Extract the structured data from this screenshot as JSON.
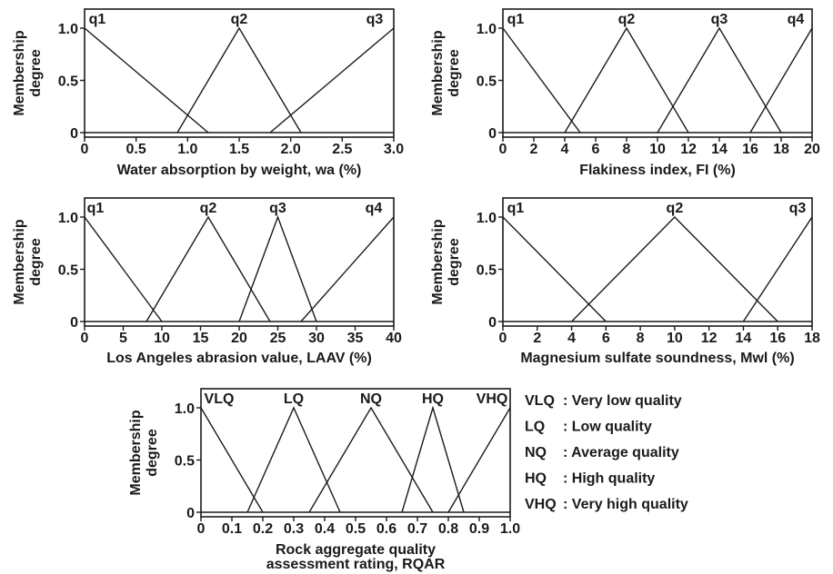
{
  "y_axis_label": [
    "Membership",
    "degree"
  ],
  "y_ticks": [
    "0",
    "0.5",
    "1.0"
  ],
  "chart_data": [
    {
      "type": "line",
      "xlabel": "Water absorption by weight, wa (%)",
      "xlim": [
        0,
        3.0
      ],
      "ylim": [
        0,
        1.0
      ],
      "x_ticks": [
        {
          "value": 0,
          "label": "0"
        },
        {
          "value": 0.5,
          "label": "0.5"
        },
        {
          "value": 1.0,
          "label": "1.0"
        },
        {
          "value": 1.5,
          "label": "1.5"
        },
        {
          "value": 2.0,
          "label": "2.0"
        },
        {
          "value": 2.5,
          "label": "2.5"
        },
        {
          "value": 3.0,
          "label": "3.0"
        }
      ],
      "series": [
        {
          "name": "q1",
          "x": [
            0,
            1.2
          ],
          "y": [
            1,
            0
          ]
        },
        {
          "name": "q2",
          "x": [
            0.9,
            1.5,
            2.1
          ],
          "y": [
            0,
            1,
            0
          ]
        },
        {
          "name": "q3",
          "x": [
            1.8,
            3.0
          ],
          "y": [
            0,
            1
          ]
        }
      ]
    },
    {
      "type": "line",
      "xlabel": "Flakiness index, FI (%)",
      "xlim": [
        0,
        20
      ],
      "ylim": [
        0,
        1.0
      ],
      "x_ticks": [
        {
          "value": 0,
          "label": "0"
        },
        {
          "value": 2,
          "label": "2"
        },
        {
          "value": 4,
          "label": "4"
        },
        {
          "value": 6,
          "label": "6"
        },
        {
          "value": 8,
          "label": "8"
        },
        {
          "value": 10,
          "label": "10"
        },
        {
          "value": 12,
          "label": "12"
        },
        {
          "value": 14,
          "label": "14"
        },
        {
          "value": 16,
          "label": "16"
        },
        {
          "value": 18,
          "label": "18"
        },
        {
          "value": 20,
          "label": "20"
        }
      ],
      "series": [
        {
          "name": "q1",
          "x": [
            0,
            5
          ],
          "y": [
            1,
            0
          ]
        },
        {
          "name": "q2",
          "x": [
            4,
            8,
            12
          ],
          "y": [
            0,
            1,
            0
          ]
        },
        {
          "name": "q3",
          "x": [
            10,
            14,
            18
          ],
          "y": [
            0,
            1,
            0
          ]
        },
        {
          "name": "q4",
          "x": [
            16,
            20
          ],
          "y": [
            0,
            1
          ]
        }
      ]
    },
    {
      "type": "line",
      "xlabel": "Los Angeles abrasion value, LAAV (%)",
      "xlim": [
        0,
        40
      ],
      "ylim": [
        0,
        1.0
      ],
      "x_ticks": [
        {
          "value": 0,
          "label": "0"
        },
        {
          "value": 5,
          "label": "5"
        },
        {
          "value": 10,
          "label": "10"
        },
        {
          "value": 15,
          "label": "15"
        },
        {
          "value": 20,
          "label": "20"
        },
        {
          "value": 25,
          "label": "25"
        },
        {
          "value": 30,
          "label": "30"
        },
        {
          "value": 35,
          "label": "35"
        },
        {
          "value": 40,
          "label": "40"
        }
      ],
      "series": [
        {
          "name": "q1",
          "x": [
            0,
            10
          ],
          "y": [
            1,
            0
          ]
        },
        {
          "name": "q2",
          "x": [
            8,
            16,
            24
          ],
          "y": [
            0,
            1,
            0
          ]
        },
        {
          "name": "q3",
          "x": [
            20,
            25,
            30
          ],
          "y": [
            0,
            1,
            0
          ]
        },
        {
          "name": "q4",
          "x": [
            28,
            40
          ],
          "y": [
            0,
            1
          ]
        }
      ]
    },
    {
      "type": "line",
      "xlabel": "Magnesium sulfate soundness, Mwl (%)",
      "xlim": [
        0,
        18
      ],
      "ylim": [
        0,
        1.0
      ],
      "x_ticks": [
        {
          "value": 0,
          "label": "0"
        },
        {
          "value": 2,
          "label": "2"
        },
        {
          "value": 4,
          "label": "4"
        },
        {
          "value": 6,
          "label": "6"
        },
        {
          "value": 8,
          "label": "8"
        },
        {
          "value": 10,
          "label": "10"
        },
        {
          "value": 12,
          "label": "12"
        },
        {
          "value": 14,
          "label": "14"
        },
        {
          "value": 16,
          "label": "16"
        },
        {
          "value": 18,
          "label": "18"
        }
      ],
      "series": [
        {
          "name": "q1",
          "x": [
            0,
            6
          ],
          "y": [
            1,
            0
          ]
        },
        {
          "name": "q2",
          "x": [
            4,
            10,
            16
          ],
          "y": [
            0,
            1,
            0
          ]
        },
        {
          "name": "q3",
          "x": [
            14,
            18
          ],
          "y": [
            0,
            1
          ]
        }
      ]
    },
    {
      "type": "line",
      "xlabel": [
        "Rock aggregate quality",
        "assessment rating, RQAR"
      ],
      "xlim": [
        0,
        1.0
      ],
      "ylim": [
        0,
        1.0
      ],
      "x_ticks": [
        {
          "value": 0,
          "label": "0"
        },
        {
          "value": 0.1,
          "label": "0.1"
        },
        {
          "value": 0.2,
          "label": "0.2"
        },
        {
          "value": 0.3,
          "label": "0.3"
        },
        {
          "value": 0.4,
          "label": "0.4"
        },
        {
          "value": 0.5,
          "label": "0.5"
        },
        {
          "value": 0.6,
          "label": "0.6"
        },
        {
          "value": 0.7,
          "label": "0.7"
        },
        {
          "value": 0.8,
          "label": "0.8"
        },
        {
          "value": 0.9,
          "label": "0.9"
        },
        {
          "value": 1.0,
          "label": "1.0"
        }
      ],
      "series": [
        {
          "name": "VLQ",
          "x": [
            0,
            0.2
          ],
          "y": [
            1,
            0
          ]
        },
        {
          "name": "LQ",
          "x": [
            0.15,
            0.3,
            0.45
          ],
          "y": [
            0,
            1,
            0
          ]
        },
        {
          "name": "NQ",
          "x": [
            0.35,
            0.55,
            0.75
          ],
          "y": [
            0,
            1,
            0
          ]
        },
        {
          "name": "HQ",
          "x": [
            0.65,
            0.75,
            0.85
          ],
          "y": [
            0,
            1,
            0
          ]
        },
        {
          "name": "VHQ",
          "x": [
            0.8,
            1.0
          ],
          "y": [
            0,
            1
          ]
        }
      ],
      "legend": [
        {
          "code": "VLQ",
          "meaning": ": Very low quality"
        },
        {
          "code": "LQ",
          "meaning": ": Low quality"
        },
        {
          "code": "NQ",
          "meaning": ": Average quality"
        },
        {
          "code": "HQ",
          "meaning": ": High quality"
        },
        {
          "code": "VHQ",
          "meaning": ": Very high quality"
        }
      ]
    }
  ]
}
